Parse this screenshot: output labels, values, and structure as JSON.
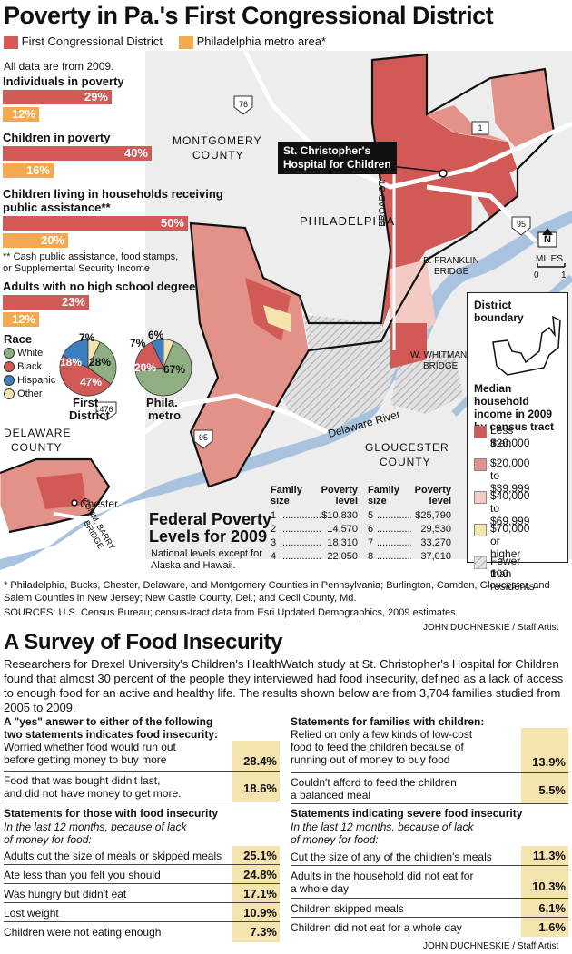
{
  "title": "Poverty in Pa.'s First Congressional District",
  "legend": {
    "district": "First Congressional District",
    "metro": "Philadelphia metro area*",
    "colors": {
      "district": "#d15a57",
      "metro": "#f4a950"
    }
  },
  "data_year_note": "All data are from 2009.",
  "stats": [
    {
      "label": "Individuals in poverty",
      "district": "29%",
      "district_value": 29,
      "metro": "12%",
      "metro_value": 12
    },
    {
      "label": "Children in poverty",
      "district": "40%",
      "district_value": 40,
      "metro": "16%",
      "metro_value": 16
    },
    {
      "label_line1": "Children living in households receiving",
      "label_line2": "public assistance**",
      "district": "50%",
      "district_value": 50,
      "metro": "20%",
      "metro_value": 20
    },
    {
      "label": "Adults with no high school degree",
      "district": "23%",
      "district_value": 23,
      "metro": "12%",
      "metro_value": 12
    }
  ],
  "assistance_note_line1": "** Cash public assistance, food stamps,",
  "assistance_note_line2": "or Supplemental Security Income",
  "race": {
    "title": "Race",
    "items": [
      "White",
      "Black",
      "Hispanic",
      "Other"
    ],
    "colors": {
      "White": "#8fae82",
      "Black": "#d15a57",
      "Hispanic": "#3b7fc0",
      "Other": "#f6e4ae"
    },
    "district": {
      "label_line1": "First",
      "label_line2": "District",
      "white": "28%",
      "black": "47%",
      "hispanic": "18%",
      "other": "7%"
    },
    "metro": {
      "label_line1": "Phila.",
      "label_line2": "metro",
      "white": "67%",
      "black": "20%",
      "hispanic": "7%",
      "other": "6%"
    }
  },
  "map": {
    "labels": {
      "montgomery": "MONTGOMERY",
      "county": "COUNTY",
      "philadelphia": "PHILADELPHIA",
      "delaware": "DELAWARE",
      "gloucester": "GLOUCESTER",
      "delaware_river": "Delaware River",
      "chester": "Chester",
      "broad_st": "BROAD ST.",
      "franklin_line1": "B. FRANKLIN",
      "franklin_line2": "BRIDGE",
      "whitman_line1": "W. WHITMAN",
      "whitman_line2": "BRIDGE",
      "barry_line1": "COMM. BARRY",
      "barry_line2": "BRIDGE",
      "hospital_line1": "St. Christopher's",
      "hospital_line2": "Hospital for Children",
      "north": "N",
      "miles": "MILES",
      "scale0": "0",
      "scale1": "1",
      "route76": "76",
      "route1": "1",
      "route95a": "95",
      "route95b": "95",
      "route476": "476"
    },
    "key": {
      "boundary_line1": "District",
      "boundary_line2": "boundary",
      "income_line1": "Median household",
      "income_line2": "income in 2009",
      "income_line3": "by census tract",
      "items": [
        {
          "line1": "Less than",
          "line2": "$20,000",
          "color": "#d15a57"
        },
        {
          "line1": "$20,000",
          "line2": "to $39,999",
          "color": "#e39289"
        },
        {
          "line1": "$40,000",
          "line2": "to $69,999",
          "color": "#f3cbc3"
        },
        {
          "line1": "$70,000",
          "line2": "or higher",
          "color": "#f6e4ae"
        },
        {
          "line1": "Fewer than",
          "line2": "100 residents",
          "color": "hatch"
        }
      ]
    }
  },
  "poverty_levels": {
    "title_line1": "Federal Poverty",
    "title_line2": "Levels for 2009",
    "note_line1": "National levels except for",
    "note_line2": "Alaska and Hawaii.",
    "col_family1": "Family",
    "col_family2": "size",
    "col_level1": "Poverty",
    "col_level2": "level",
    "rows": [
      {
        "size": "1",
        "level": "$10,830"
      },
      {
        "size": "2",
        "level": "14,570"
      },
      {
        "size": "3",
        "level": "18,310"
      },
      {
        "size": "4",
        "level": "22,050"
      },
      {
        "size": "5",
        "level": "$25,790"
      },
      {
        "size": "6",
        "level": "29,530"
      },
      {
        "size": "7",
        "level": "33,270"
      },
      {
        "size": "8",
        "level": "37,010"
      }
    ]
  },
  "footnote": "* Philadelphia, Bucks, Chester, Delaware, and Montgomery Counties in Pennsylvania; Burlington, Camden, Gloucester, and Salem Counties in New Jersey; New Castle County, Del.; and Cecil County, Md.",
  "sources": "SOURCES: U.S. Census Bureau; census-tract data from Esri Updated Demographics, 2009 estimates",
  "credit": "JOHN DUCHNESKIE / Staff Artist",
  "survey": {
    "title": "A Survey of Food Insecurity",
    "intro": "Researchers for Drexel University's Children's HealthWatch study at St. Christopher's Hospital for Children found that almost 30 percent of the people they interviewed had food insecurity, defined as a lack of access to enough food for an active and healthy life. The results shown below are from 3,704 families studied from 2005 to 2009.",
    "left_head_line1": "A \"yes\" answer to either of the following",
    "left_head_line2": "two statements indicates food insecurity:",
    "left_rows1": [
      {
        "line1": "Worried whether food would run out",
        "line2": "before getting money to buy more",
        "value": "28.4%"
      },
      {
        "line1": "Food that was bought didn't last,",
        "line2": "and did not have money to get more.",
        "value": "18.6%"
      }
    ],
    "left_head2": "Statements for those with food insecurity",
    "left_ital_line1": "In the last 12 months, because of lack",
    "left_ital_line2": "of money for food:",
    "left_rows2": [
      {
        "line1": "Adults cut the size of meals or skipped meals",
        "value": "25.1%"
      },
      {
        "line1": "Ate less than you felt you should",
        "value": "24.8%"
      },
      {
        "line1": "Was hungry but didn't eat",
        "value": "17.1%"
      },
      {
        "line1": "Lost weight",
        "value": "10.9%"
      },
      {
        "line1": "Children were not eating enough",
        "value": "7.3%"
      }
    ],
    "right_head1": "Statements for families with children:",
    "right_rows1": [
      {
        "line1": "Relied on only a few kinds of low-cost",
        "line2": "food to feed the children because of",
        "line3": "running out of money to buy food",
        "value": "13.9%"
      },
      {
        "line1": "Couldn't afford to feed the children",
        "line2": "a balanced meal",
        "value": "5.5%"
      }
    ],
    "right_head2": "Statements indicating severe food insecurity",
    "right_ital_line1": "In the last 12 months, because of lack",
    "right_ital_line2": "of money for food:",
    "right_rows2": [
      {
        "line1": "Cut the size of any of the children's meals",
        "value": "11.3%"
      },
      {
        "line1": "Adults in the household did not eat for",
        "line2": "a whole day",
        "value": "10.3%"
      },
      {
        "line1": "Children skipped meals",
        "value": "6.1%"
      },
      {
        "line1": "Children did not eat for a whole day",
        "value": "1.6%"
      }
    ]
  }
}
